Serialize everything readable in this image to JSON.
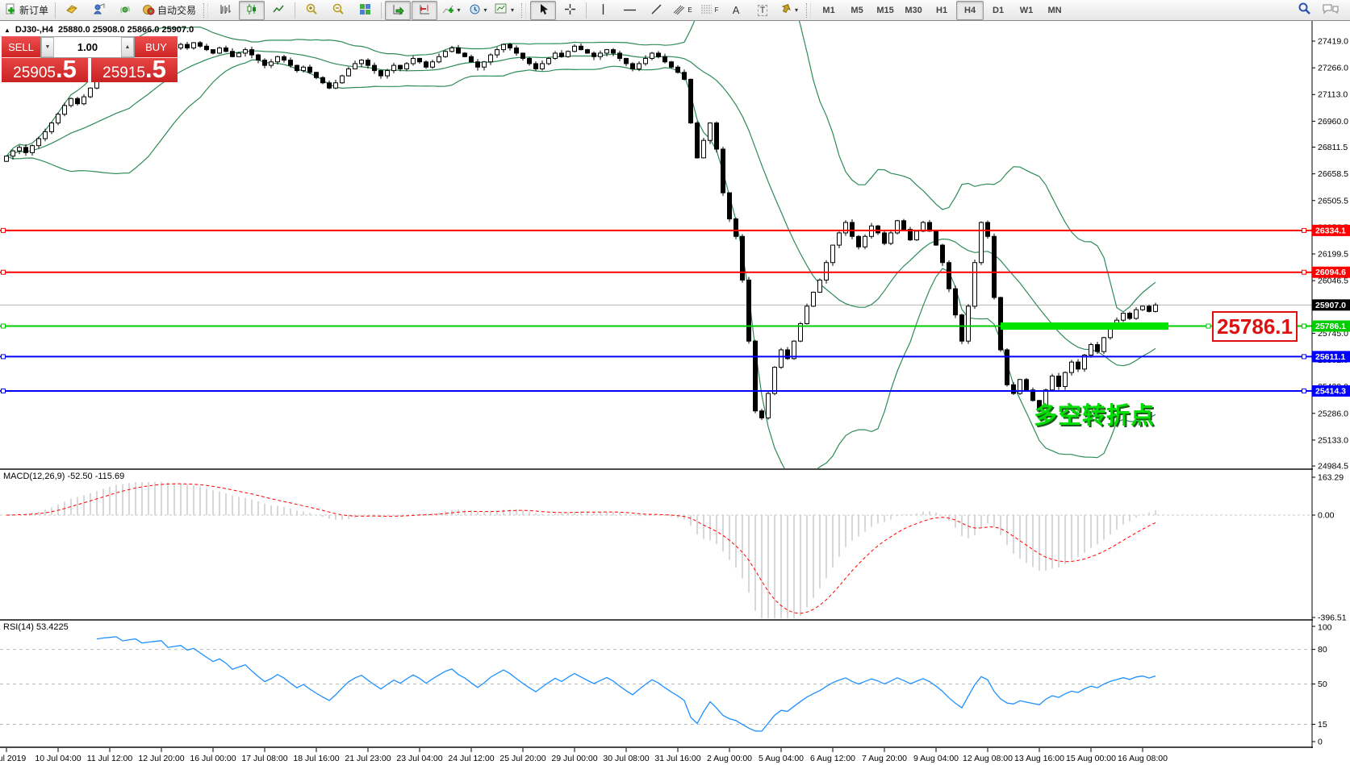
{
  "toolbar": {
    "new_order_label": "新订单",
    "auto_trading_label": "自动交易",
    "timeframes": [
      "M1",
      "M5",
      "M15",
      "M30",
      "H1",
      "H4",
      "D1",
      "W1",
      "MN"
    ],
    "active_timeframe": "H4"
  },
  "icons": {
    "title_collapse": "▲",
    "dropdown": "▾",
    "spinner_down": "▼",
    "spinner_up": "▲",
    "text_tool": "A",
    "label_tool": "T",
    "channel_letter": "E",
    "fibo_letter": "F"
  },
  "one_click": {
    "sell_label": "SELL",
    "buy_label": "BUY",
    "volume": "1.00",
    "sell_price_big": "25905",
    "sell_pip": ".5",
    "buy_price_big": "25915",
    "buy_pip": ".5"
  },
  "chart": {
    "symbol_period": "DJ30-,H4",
    "ohlc_text": "25880.0 25908.0 25866.0 25907.0"
  },
  "indicator_labels": {
    "macd": "MACD(12,26,9) -52.50 -115.69",
    "rsi": "RSI(14) 53.4225"
  },
  "annotations": {
    "level_callout": "25786.1",
    "turning_point": "多空转折点"
  },
  "chart_data": {
    "type": "candlestick",
    "symbol": "DJ30-",
    "timeframe": "H4",
    "ohlc_display": {
      "open": 25880.0,
      "high": 25908.0,
      "low": 25866.0,
      "close": 25907.0
    },
    "current_price": 25907.0,
    "price_ticks": [
      27419.0,
      27266.0,
      27113.0,
      26960.0,
      26811.5,
      26658.5,
      26505.5,
      26352.5,
      26199.5,
      26046.5,
      25893.5,
      25745.0,
      25592.0,
      25439.0,
      25286.0,
      25133.0,
      24984.5
    ],
    "x_labels": [
      "8 Jul 2019",
      "10 Jul 04:00",
      "11 Jul 12:00",
      "12 Jul 20:00",
      "16 Jul 00:00",
      "17 Jul 08:00",
      "18 Jul 16:00",
      "21 Jul 23:00",
      "23 Jul 04:00",
      "24 Jul 12:00",
      "25 Jul 20:00",
      "29 Jul 00:00",
      "30 Jul 08:00",
      "31 Jul 16:00",
      "2 Aug 00:00",
      "5 Aug 04:00",
      "6 Aug 12:00",
      "7 Aug 20:00",
      "9 Aug 04:00",
      "12 Aug 08:00",
      "13 Aug 16:00",
      "15 Aug 00:00",
      "16 Aug 08:00"
    ],
    "bars_per_x_label": 8,
    "closes": [
      26760,
      26790,
      26810,
      26780,
      26820,
      26860,
      26900,
      26950,
      27000,
      27050,
      27090,
      27060,
      27100,
      27150,
      27190,
      27230,
      27260,
      27290,
      27270,
      27310,
      27340,
      27320,
      27350,
      27370,
      27390,
      27360,
      27380,
      27400,
      27380,
      27410,
      27390,
      27370,
      27350,
      27380,
      27360,
      27330,
      27350,
      27370,
      27340,
      27310,
      27280,
      27300,
      27330,
      27310,
      27280,
      27250,
      27270,
      27240,
      27210,
      27180,
      27150,
      27180,
      27220,
      27260,
      27290,
      27310,
      27280,
      27250,
      27220,
      27250,
      27280,
      27260,
      27290,
      27320,
      27300,
      27270,
      27300,
      27330,
      27360,
      27380,
      27350,
      27330,
      27300,
      27270,
      27300,
      27340,
      27370,
      27400,
      27380,
      27350,
      27320,
      27290,
      27260,
      27290,
      27320,
      27350,
      27330,
      27360,
      27390,
      27370,
      27350,
      27330,
      27350,
      27370,
      27350,
      27320,
      27290,
      27260,
      27290,
      27320,
      27350,
      27330,
      27300,
      27270,
      27240,
      27200,
      26950,
      26750,
      26850,
      26950,
      26800,
      26550,
      26400,
      26300,
      26050,
      25700,
      25300,
      25260,
      25400,
      25550,
      25650,
      25600,
      25700,
      25800,
      25900,
      25980,
      26050,
      26150,
      26250,
      26320,
      26380,
      26300,
      26240,
      26300,
      26360,
      26320,
      26260,
      26320,
      26390,
      26340,
      26280,
      26330,
      26380,
      26330,
      26250,
      26150,
      26000,
      25850,
      25700,
      25900,
      26150,
      26380,
      26300,
      25950,
      25650,
      25450,
      25400,
      25480,
      25420,
      25360,
      25300,
      25420,
      25500,
      25440,
      25520,
      25580,
      25540,
      25620,
      25680,
      25640,
      25720,
      25780,
      25820,
      25860,
      25830,
      25880,
      25900,
      25870,
      25907
    ],
    "levels": [
      {
        "price": 26334.1,
        "color": "#ff0000",
        "width": 2
      },
      {
        "price": 26094.6,
        "color": "#ff0000",
        "width": 2
      },
      {
        "price": 25786.1,
        "color": "#00cc00",
        "width": 2,
        "highlight_bars": [
          154,
          180
        ],
        "callout": "25786.1"
      },
      {
        "price": 25611.1,
        "color": "#0000ff",
        "width": 2
      },
      {
        "price": 25414.3,
        "color": "#0000ff",
        "width": 2
      }
    ],
    "bollinger": {
      "period": 20,
      "deviation": 2,
      "color": "#2e8b57"
    },
    "macd": {
      "fast": 12,
      "slow": 26,
      "signal_period": 9,
      "main_value": -52.5,
      "signal_value": -115.69,
      "axis_ticks": [
        163.29,
        0,
        -396.51
      ],
      "histogram_color": "#c4c4c4",
      "signal_color": "#ff0000"
    },
    "rsi": {
      "period": 14,
      "value": 53.4225,
      "axis_ticks": [
        100,
        80,
        50,
        15,
        0
      ],
      "levels": [
        80,
        50,
        15
      ],
      "color": "#1e90ff"
    }
  }
}
